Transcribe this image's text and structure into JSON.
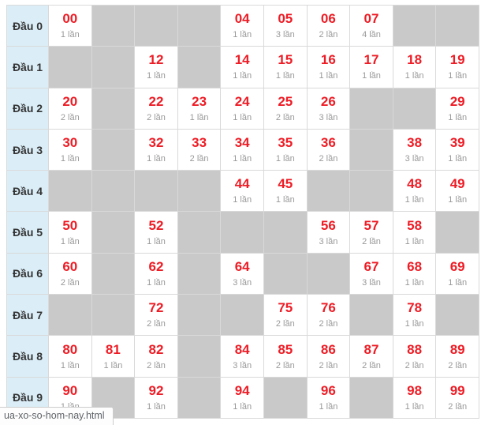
{
  "colors": {
    "accent_red": "#ee1c25",
    "label_bg": "#dbeef8",
    "empty_cell_bg": "#c9c9c9",
    "grid_border": "#d9d9d9",
    "count_text": "#999999",
    "label_text": "#333333"
  },
  "status_bar": {
    "text": "ua-xo-so-hom-nay.html"
  },
  "table": {
    "rows": [
      {
        "label": "Đầu 0",
        "cells": [
          {
            "number": "00",
            "times": "1 lần"
          },
          null,
          null,
          null,
          {
            "number": "04",
            "times": "1 lần"
          },
          {
            "number": "05",
            "times": "3 lần"
          },
          {
            "number": "06",
            "times": "2 lần"
          },
          {
            "number": "07",
            "times": "4 lần"
          },
          null,
          null
        ]
      },
      {
        "label": "Đầu 1",
        "cells": [
          null,
          null,
          {
            "number": "12",
            "times": "1 lần"
          },
          null,
          {
            "number": "14",
            "times": "1 lần"
          },
          {
            "number": "15",
            "times": "1 lần"
          },
          {
            "number": "16",
            "times": "1 lần"
          },
          {
            "number": "17",
            "times": "1 lần"
          },
          {
            "number": "18",
            "times": "1 lần"
          },
          {
            "number": "19",
            "times": "1 lần"
          }
        ]
      },
      {
        "label": "Đầu 2",
        "cells": [
          {
            "number": "20",
            "times": "2 lần"
          },
          null,
          {
            "number": "22",
            "times": "2 lần"
          },
          {
            "number": "23",
            "times": "1 lần"
          },
          {
            "number": "24",
            "times": "1 lần"
          },
          {
            "number": "25",
            "times": "2 lần"
          },
          {
            "number": "26",
            "times": "3 lần"
          },
          null,
          null,
          {
            "number": "29",
            "times": "1 lần"
          }
        ]
      },
      {
        "label": "Đầu 3",
        "cells": [
          {
            "number": "30",
            "times": "1 lần"
          },
          null,
          {
            "number": "32",
            "times": "1 lần"
          },
          {
            "number": "33",
            "times": "2 lần"
          },
          {
            "number": "34",
            "times": "1 lần"
          },
          {
            "number": "35",
            "times": "1 lần"
          },
          {
            "number": "36",
            "times": "2 lần"
          },
          null,
          {
            "number": "38",
            "times": "3 lần"
          },
          {
            "number": "39",
            "times": "1 lần"
          }
        ]
      },
      {
        "label": "Đầu 4",
        "cells": [
          null,
          null,
          null,
          null,
          {
            "number": "44",
            "times": "1 lần"
          },
          {
            "number": "45",
            "times": "1 lần"
          },
          null,
          null,
          {
            "number": "48",
            "times": "1 lần"
          },
          {
            "number": "49",
            "times": "1 lần"
          }
        ]
      },
      {
        "label": "Đầu 5",
        "cells": [
          {
            "number": "50",
            "times": "1 lần"
          },
          null,
          {
            "number": "52",
            "times": "1 lần"
          },
          null,
          null,
          null,
          {
            "number": "56",
            "times": "3 lần"
          },
          {
            "number": "57",
            "times": "2 lần"
          },
          {
            "number": "58",
            "times": "1 lần"
          },
          null
        ]
      },
      {
        "label": "Đầu 6",
        "cells": [
          {
            "number": "60",
            "times": "2 lần"
          },
          null,
          {
            "number": "62",
            "times": "1 lần"
          },
          null,
          {
            "number": "64",
            "times": "3 lần"
          },
          null,
          null,
          {
            "number": "67",
            "times": "3 lần"
          },
          {
            "number": "68",
            "times": "1 lần"
          },
          {
            "number": "69",
            "times": "1 lần"
          }
        ]
      },
      {
        "label": "Đầu 7",
        "cells": [
          null,
          null,
          {
            "number": "72",
            "times": "2 lần"
          },
          null,
          null,
          {
            "number": "75",
            "times": "2 lần"
          },
          {
            "number": "76",
            "times": "2 lần"
          },
          null,
          {
            "number": "78",
            "times": "1 lần"
          },
          null
        ]
      },
      {
        "label": "Đầu 8",
        "cells": [
          {
            "number": "80",
            "times": "1 lần"
          },
          {
            "number": "81",
            "times": "1 lần"
          },
          {
            "number": "82",
            "times": "2 lần"
          },
          null,
          {
            "number": "84",
            "times": "3 lần"
          },
          {
            "number": "85",
            "times": "2 lần"
          },
          {
            "number": "86",
            "times": "2 lần"
          },
          {
            "number": "87",
            "times": "2 lần"
          },
          {
            "number": "88",
            "times": "2 lần"
          },
          {
            "number": "89",
            "times": "2 lần"
          }
        ]
      },
      {
        "label": "Đầu 9",
        "cells": [
          {
            "number": "90",
            "times": "1 lần"
          },
          null,
          {
            "number": "92",
            "times": "1 lần"
          },
          null,
          {
            "number": "94",
            "times": "1 lần"
          },
          null,
          {
            "number": "96",
            "times": "1 lần"
          },
          null,
          {
            "number": "98",
            "times": "1 lần"
          },
          {
            "number": "99",
            "times": "2 lần"
          }
        ]
      }
    ]
  }
}
